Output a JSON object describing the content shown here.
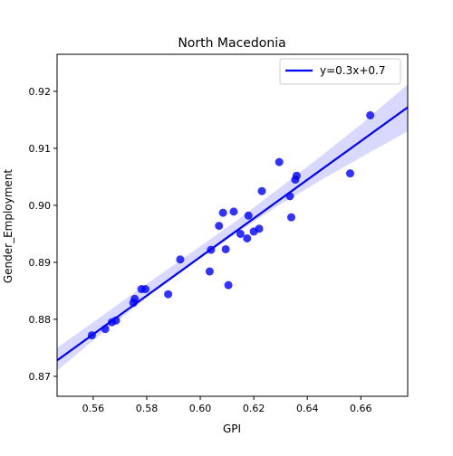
{
  "chart_data": {
    "type": "scatter",
    "title": "North Macedonia",
    "xlabel": "GPI",
    "ylabel": "Gender_Employment",
    "xlim": [
      0.5465,
      0.6775
    ],
    "ylim": [
      0.8665,
      0.9265
    ],
    "xticks": [
      0.56,
      0.58,
      0.6,
      0.62,
      0.64,
      0.66
    ],
    "xtick_labels": [
      "0.56",
      "0.58",
      "0.60",
      "0.62",
      "0.64",
      "0.66"
    ],
    "yticks": [
      0.87,
      0.88,
      0.89,
      0.9,
      0.91,
      0.92
    ],
    "ytick_labels": [
      "0.87",
      "0.88",
      "0.89",
      "0.90",
      "0.91",
      "0.92"
    ],
    "grid": false,
    "legend_position": "upper right",
    "series": [
      {
        "name": "y=0.3x+0.7",
        "kind": "regression_line",
        "color": "#0000ff",
        "x": [
          0.5465,
          0.6775
        ],
        "y": [
          0.8728,
          0.9172
        ],
        "ci_band": {
          "x": [
            0.5465,
            0.56,
            0.58,
            0.6,
            0.615,
            0.63,
            0.645,
            0.66,
            0.6775
          ],
          "lower": [
            0.871,
            0.8763,
            0.8838,
            0.8907,
            0.8956,
            0.9002,
            0.9044,
            0.9084,
            0.913
          ],
          "upper": [
            0.875,
            0.8795,
            0.8862,
            0.8928,
            0.8978,
            0.9032,
            0.9086,
            0.9142,
            0.9212
          ]
        }
      },
      {
        "name": "",
        "kind": "points",
        "color": "#0000ff",
        "points": [
          [
            0.5595,
            0.8772
          ],
          [
            0.5645,
            0.8783
          ],
          [
            0.567,
            0.8795
          ],
          [
            0.5685,
            0.8798
          ],
          [
            0.575,
            0.8829
          ],
          [
            0.5755,
            0.8836
          ],
          [
            0.578,
            0.8853
          ],
          [
            0.5795,
            0.8853
          ],
          [
            0.588,
            0.8844
          ],
          [
            0.5925,
            0.8905
          ],
          [
            0.6035,
            0.8884
          ],
          [
            0.604,
            0.8922
          ],
          [
            0.607,
            0.8964
          ],
          [
            0.6085,
            0.8987
          ],
          [
            0.6095,
            0.8923
          ],
          [
            0.6105,
            0.886
          ],
          [
            0.6125,
            0.8989
          ],
          [
            0.615,
            0.895
          ],
          [
            0.6175,
            0.8942
          ],
          [
            0.618,
            0.8982
          ],
          [
            0.62,
            0.8954
          ],
          [
            0.622,
            0.8959
          ],
          [
            0.623,
            0.9025
          ],
          [
            0.6295,
            0.9076
          ],
          [
            0.6335,
            0.9016
          ],
          [
            0.634,
            0.8979
          ],
          [
            0.6355,
            0.9045
          ],
          [
            0.636,
            0.9052
          ],
          [
            0.656,
            0.9056
          ],
          [
            0.6635,
            0.9158
          ]
        ]
      }
    ]
  }
}
